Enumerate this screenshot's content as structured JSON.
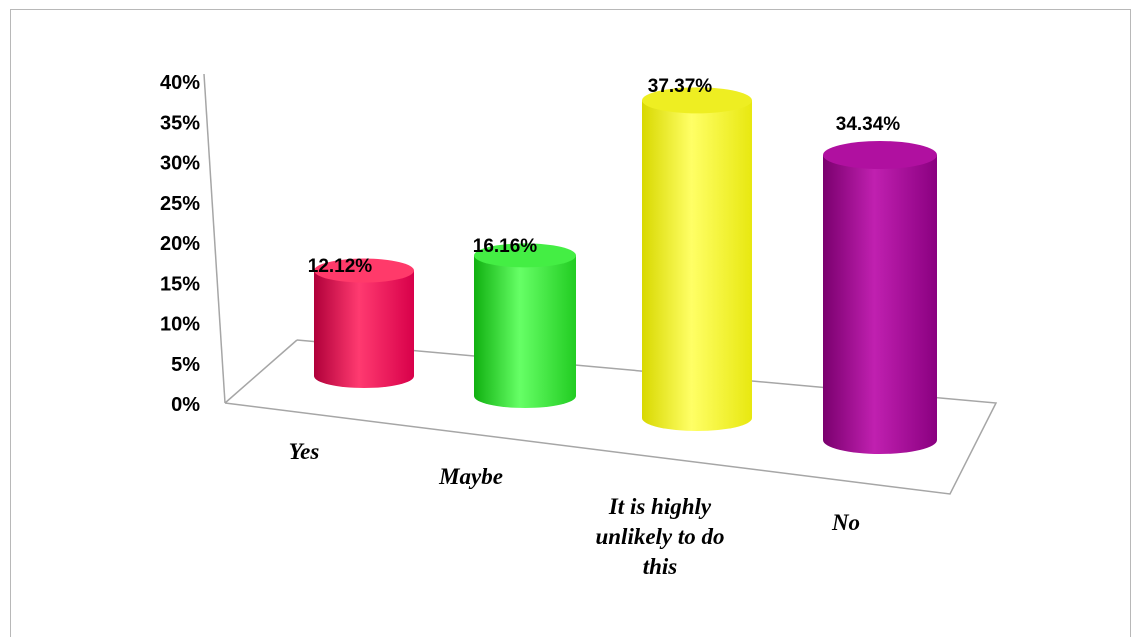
{
  "chart_data": {
    "type": "bar",
    "style": "3d-cylinder",
    "categories": [
      "Yes",
      "Maybe",
      "It is highly unlikely to do this",
      "No"
    ],
    "category_lines": [
      [
        "Yes"
      ],
      [
        "Maybe"
      ],
      [
        "It is highly",
        "unlikely to do",
        "this"
      ],
      [
        "No"
      ]
    ],
    "values": [
      12.12,
      16.16,
      37.37,
      34.34
    ],
    "data_labels": [
      "12.12%",
      "16.16%",
      "37.37%",
      "34.34%"
    ],
    "colors": [
      "#ff1a5e",
      "#33ff33",
      "#ffff33",
      "#aa0099"
    ],
    "ylim": [
      0,
      40
    ],
    "yticks": [
      "0%",
      "5%",
      "10%",
      "15%",
      "20%",
      "25%",
      "30%",
      "35%",
      "40%"
    ],
    "title": "",
    "xlabel": "",
    "ylabel": "",
    "grid": false,
    "legend": "none"
  }
}
